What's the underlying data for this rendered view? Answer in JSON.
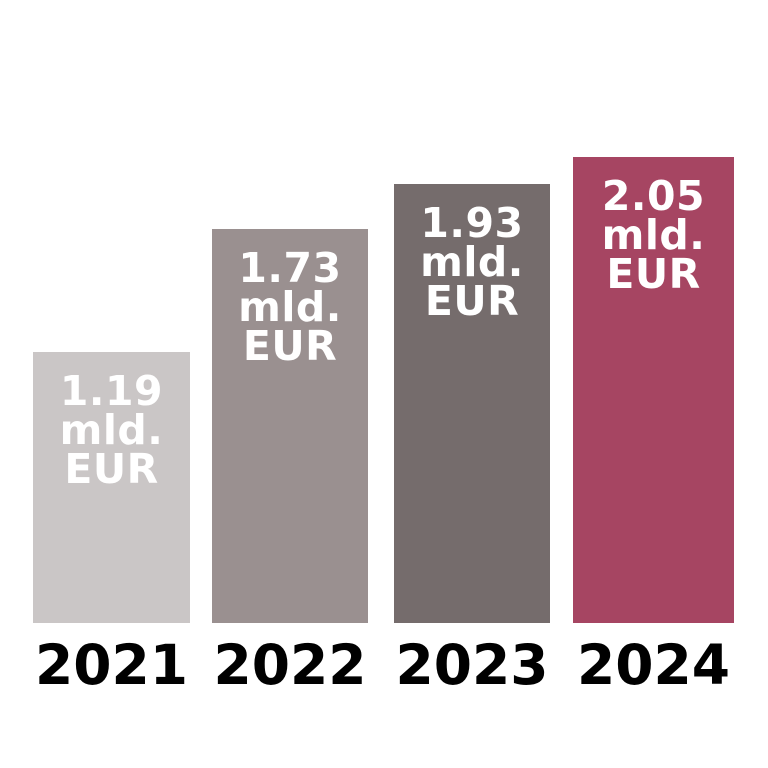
{
  "chart_data": {
    "type": "bar",
    "title": "",
    "xlabel": "",
    "ylabel": "",
    "unit": "mld. EUR",
    "categories": [
      "2021",
      "2022",
      "2023",
      "2024"
    ],
    "values": [
      1.19,
      1.73,
      1.93,
      2.05
    ],
    "ylim": [
      0,
      2.2
    ],
    "grid": false,
    "axes_visible": false,
    "legend_position": "none",
    "background_color": "#ffffff",
    "bar_value_text_color": "#ffffff",
    "category_text_color": "#000000",
    "bars": [
      {
        "category": "2021",
        "value": 1.19,
        "label_lines": [
          "1.19",
          "mld.",
          "EUR"
        ],
        "color": "#cac6c6"
      },
      {
        "category": "2022",
        "value": 1.73,
        "label_lines": [
          "1.73",
          "mld.",
          "EUR"
        ],
        "color": "#9a9090"
      },
      {
        "category": "2023",
        "value": 1.93,
        "label_lines": [
          "1.93",
          "mld.",
          "EUR"
        ],
        "color": "#756c6c"
      },
      {
        "category": "2024",
        "value": 2.05,
        "label_lines": [
          "2.05",
          "mld.",
          "EUR"
        ],
        "color": "#a64562"
      }
    ]
  }
}
